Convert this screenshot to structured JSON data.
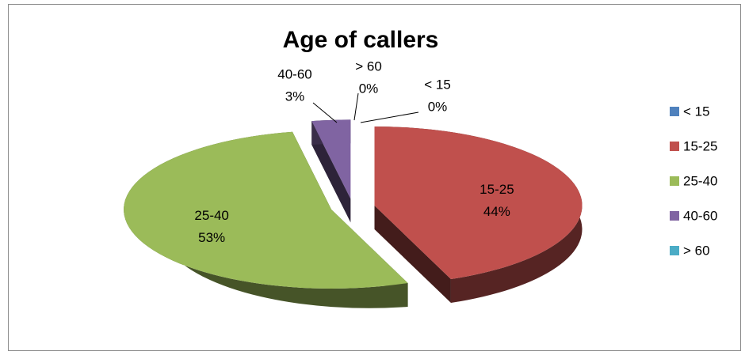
{
  "chart_data": {
    "type": "pie",
    "title": "Age of callers",
    "categories": [
      "< 15",
      "15-25",
      "25-40",
      "40-60",
      "> 60"
    ],
    "values": [
      0,
      44,
      53,
      3,
      0
    ],
    "value_labels": [
      "0%",
      "44%",
      "53%",
      "3%",
      "0%"
    ],
    "colors": [
      "#4f81bd",
      "#c0504d",
      "#9bbb59",
      "#8064a2",
      "#4bacc6"
    ],
    "legend": "right",
    "exploded": true,
    "three_d": true
  }
}
